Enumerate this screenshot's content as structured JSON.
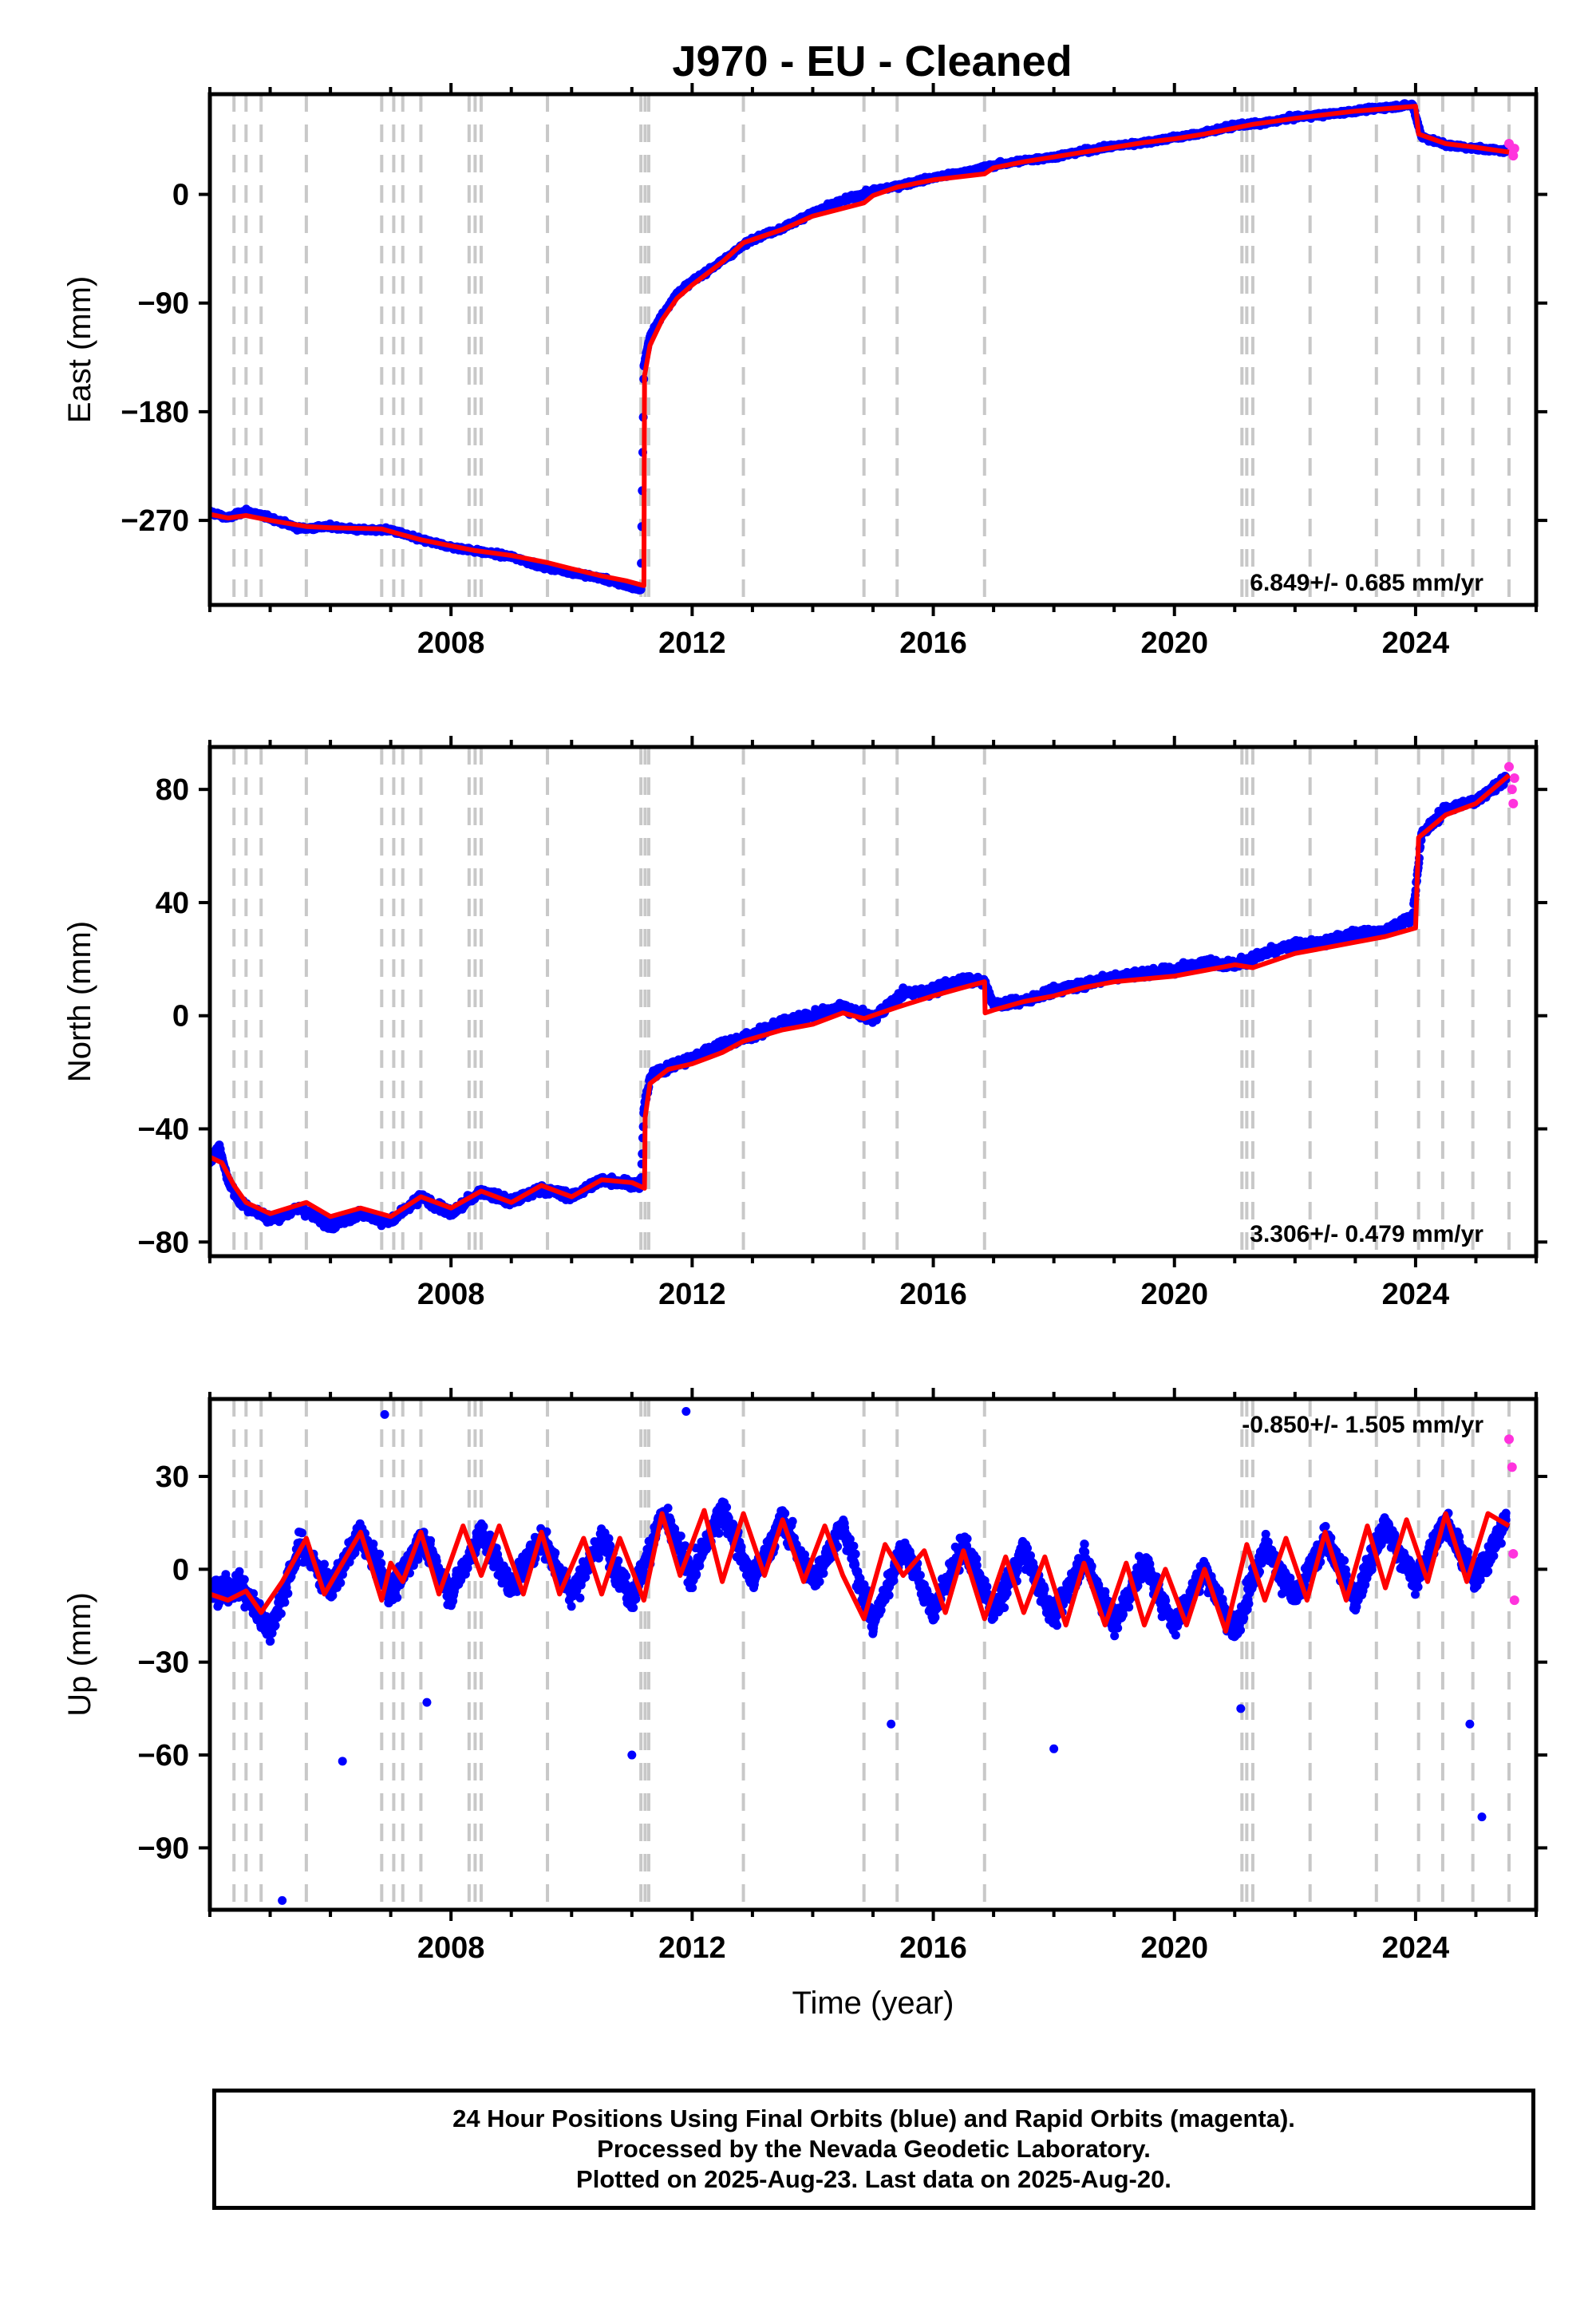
{
  "title": "J970  - EU - Cleaned",
  "footer": {
    "line1": "24 Hour Positions Using Final Orbits (blue) and Rapid Orbits (magenta).",
    "line2": "Processed by the Nevada Geodetic Laboratory.",
    "line3": "Plotted on 2025-Aug-23. Last data on 2025-Aug-20."
  },
  "colors": {
    "final_orbits": "#0000ff",
    "rapid_orbits": "#ff33dd",
    "model": "#ff0000",
    "event_lines": "#c8c8c8"
  },
  "chart_data": [
    {
      "type": "scatter",
      "panel": "east",
      "ylabel": "East (mm)",
      "xlabel": "",
      "rate": "6.849+/- 0.685 mm/yr",
      "rate_position": "bottom-right",
      "xlim": [
        2004.0,
        2026.0
      ],
      "ylim": [
        -340,
        83
      ],
      "xticks": [
        2008,
        2012,
        2016,
        2020,
        2024
      ],
      "yticks": [
        0,
        -90,
        -180,
        -270
      ],
      "event_lines": [
        2004.4,
        2004.6,
        2004.85,
        2005.6,
        2006.85,
        2007.05,
        2007.2,
        2007.5,
        2008.3,
        2008.4,
        2008.5,
        2009.6,
        2011.15,
        2011.22,
        2011.28,
        2012.85,
        2014.85,
        2015.4,
        2016.85,
        2021.12,
        2021.2,
        2021.3,
        2022.25,
        2023.35,
        2024.05,
        2024.45,
        2024.95,
        2025.55
      ],
      "series": [
        {
          "name": "Final Orbits",
          "style": "dots",
          "color": "#0000ff",
          "x": [
            2004.0,
            2004.3,
            2004.6,
            2005.0,
            2005.5,
            2006.0,
            2006.5,
            2007.0,
            2007.5,
            2008.0,
            2008.5,
            2009.0,
            2009.5,
            2010.0,
            2010.5,
            2010.9,
            2011.15,
            2011.2,
            2011.3,
            2011.5,
            2011.75,
            2012.0,
            2012.5,
            2013.0,
            2013.5,
            2014.0,
            2014.5,
            2015.0,
            2015.5,
            2016.0,
            2016.5,
            2017.0,
            2017.5,
            2018.0,
            2018.5,
            2019.0,
            2019.5,
            2020.0,
            2020.5,
            2021.0,
            2021.5,
            2022.0,
            2022.5,
            2023.0,
            2023.5,
            2023.95,
            2024.1,
            2024.5,
            2025.0,
            2025.5
          ],
          "y": [
            -263,
            -268,
            -262,
            -268,
            -277,
            -275,
            -278,
            -278,
            -286,
            -292,
            -296,
            -300,
            -308,
            -313,
            -318,
            -324,
            -327,
            -142,
            -118,
            -100,
            -82,
            -72,
            -55,
            -37,
            -28,
            -15,
            -5,
            3,
            8,
            14,
            18,
            24,
            28,
            31,
            36,
            40,
            43,
            47,
            51,
            57,
            59,
            64,
            66,
            69,
            72,
            74,
            48,
            41,
            38,
            36
          ]
        },
        {
          "name": "Rapid Orbits",
          "style": "dots",
          "color": "#ff33dd",
          "x": [
            2025.55,
            2025.6,
            2025.62,
            2025.64
          ],
          "y": [
            42,
            36,
            32,
            38
          ]
        },
        {
          "name": "Model",
          "style": "line",
          "color": "#ff0000",
          "x": [
            2004.0,
            2004.3,
            2004.6,
            2005.0,
            2005.6,
            2006.0,
            2006.85,
            2007.2,
            2007.5,
            2008.0,
            2008.4,
            2009.0,
            2009.6,
            2010.0,
            2010.5,
            2010.9,
            2011.2,
            2011.21,
            2011.3,
            2011.5,
            2011.75,
            2012.0,
            2012.5,
            2012.85,
            2013.5,
            2014.0,
            2014.85,
            2015.0,
            2015.4,
            2016.0,
            2016.85,
            2017.0,
            2017.5,
            2018.0,
            2018.5,
            2019.0,
            2019.5,
            2020.0,
            2020.5,
            2021.0,
            2021.3,
            2022.0,
            2022.5,
            2023.0,
            2023.5,
            2024.0,
            2024.05,
            2024.5,
            2025.0,
            2025.55
          ],
          "y": [
            -265,
            -268,
            -266,
            -270,
            -275,
            -276,
            -277,
            -282,
            -286,
            -291,
            -295,
            -299,
            -305,
            -310,
            -316,
            -320,
            -324,
            -150,
            -125,
            -104,
            -86,
            -75,
            -56,
            -40,
            -29,
            -18,
            -7,
            -1,
            6,
            12,
            17,
            22,
            27,
            31,
            35,
            39,
            43,
            46,
            50,
            55,
            58,
            63,
            66,
            69,
            71,
            73,
            50,
            42,
            39,
            35
          ]
        }
      ]
    },
    {
      "type": "scatter",
      "panel": "north",
      "ylabel": "North (mm)",
      "xlabel": "",
      "rate": "3.306+/- 0.479 mm/yr",
      "rate_position": "bottom-right",
      "xlim": [
        2004.0,
        2026.0
      ],
      "ylim": [
        -85,
        95
      ],
      "xticks": [
        2008,
        2012,
        2016,
        2020,
        2024
      ],
      "yticks": [
        80,
        40,
        0,
        -40,
        -80
      ],
      "event_lines": [
        2004.4,
        2004.6,
        2004.85,
        2005.6,
        2006.85,
        2007.05,
        2007.2,
        2007.5,
        2008.3,
        2008.4,
        2008.5,
        2009.6,
        2011.15,
        2011.22,
        2011.28,
        2012.85,
        2014.85,
        2015.4,
        2016.85,
        2021.12,
        2021.2,
        2021.3,
        2022.25,
        2023.35,
        2024.05,
        2024.45,
        2024.95,
        2025.55
      ],
      "series": [
        {
          "name": "Final Orbits",
          "style": "dots",
          "color": "#0000ff",
          "x": [
            2004.0,
            2004.15,
            2004.3,
            2004.5,
            2005.0,
            2005.5,
            2006.0,
            2006.5,
            2007.0,
            2007.5,
            2008.0,
            2008.5,
            2009.0,
            2009.5,
            2010.0,
            2010.5,
            2010.9,
            2011.15,
            2011.2,
            2011.3,
            2011.6,
            2012.0,
            2012.5,
            2013.0,
            2013.5,
            2014.0,
            2014.5,
            2015.0,
            2015.5,
            2016.0,
            2016.5,
            2016.85,
            2017.0,
            2017.5,
            2018.0,
            2018.5,
            2019.0,
            2019.5,
            2020.0,
            2020.5,
            2021.0,
            2021.5,
            2022.0,
            2022.5,
            2023.0,
            2023.5,
            2023.95,
            2024.1,
            2024.5,
            2025.0,
            2025.5
          ],
          "y": [
            -52,
            -46,
            -58,
            -66,
            -72,
            -68,
            -74,
            -70,
            -73,
            -64,
            -70,
            -62,
            -66,
            -61,
            -64,
            -58,
            -59,
            -60,
            -33,
            -22,
            -18,
            -15,
            -10,
            -7,
            -2,
            0,
            3,
            -1,
            8,
            9,
            13,
            12,
            4,
            5,
            9,
            11,
            14,
            15,
            16,
            19,
            18,
            22,
            25,
            26,
            29,
            30,
            35,
            64,
            73,
            76,
            84
          ]
        },
        {
          "name": "Rapid Orbits",
          "style": "dots",
          "color": "#ff33dd",
          "x": [
            2025.55,
            2025.6,
            2025.62,
            2025.64
          ],
          "y": [
            88,
            80,
            75,
            84
          ]
        },
        {
          "name": "Model",
          "style": "line",
          "color": "#ff0000",
          "x": [
            2004.0,
            2004.2,
            2004.4,
            2004.6,
            2005.0,
            2005.6,
            2006.0,
            2006.5,
            2007.0,
            2007.5,
            2008.0,
            2008.5,
            2009.0,
            2009.5,
            2010.0,
            2010.5,
            2011.0,
            2011.21,
            2011.22,
            2011.3,
            2011.6,
            2012.0,
            2012.5,
            2012.85,
            2013.5,
            2014.0,
            2014.5,
            2014.85,
            2015.4,
            2016.0,
            2016.5,
            2016.85,
            2016.86,
            2017.0,
            2017.5,
            2018.0,
            2018.5,
            2019.0,
            2019.5,
            2020.0,
            2020.5,
            2021.0,
            2021.3,
            2022.0,
            2022.5,
            2023.0,
            2023.5,
            2024.0,
            2024.05,
            2024.5,
            2025.0,
            2025.55
          ],
          "y": [
            -50,
            -52,
            -60,
            -66,
            -70,
            -66,
            -71,
            -68,
            -71,
            -64,
            -68,
            -62,
            -66,
            -60,
            -64,
            -58,
            -59,
            -61,
            -36,
            -24,
            -19,
            -17,
            -13,
            -9,
            -5,
            -3,
            1,
            -1,
            3,
            7,
            10,
            12,
            1,
            2,
            5,
            7,
            10,
            12,
            13,
            14,
            16,
            18,
            17,
            22,
            24,
            26,
            28,
            31,
            63,
            71,
            75,
            85
          ]
        }
      ]
    },
    {
      "type": "scatter",
      "panel": "up",
      "ylabel": "Up (mm)",
      "xlabel": "Time (year)",
      "rate": "-0.850+/- 1.505 mm/yr",
      "rate_position": "top-right",
      "xlim": [
        2004.0,
        2026.0
      ],
      "ylim": [
        -110,
        55
      ],
      "xticks": [
        2008,
        2012,
        2016,
        2020,
        2024
      ],
      "yticks": [
        30,
        0,
        -30,
        -60,
        -90
      ],
      "event_lines": [
        2004.4,
        2004.6,
        2004.85,
        2005.6,
        2006.85,
        2007.05,
        2007.2,
        2007.5,
        2008.3,
        2008.4,
        2008.5,
        2009.6,
        2011.15,
        2011.22,
        2011.28,
        2012.85,
        2014.85,
        2015.4,
        2016.85,
        2021.12,
        2021.2,
        2021.3,
        2022.25,
        2023.35,
        2024.05,
        2024.45,
        2024.95,
        2025.55
      ],
      "series": [
        {
          "name": "Final Orbits",
          "style": "dots",
          "color": "#0000ff",
          "x": [
            2004.0,
            2004.5,
            2005.0,
            2005.5,
            2006.0,
            2006.5,
            2007.0,
            2007.5,
            2008.0,
            2008.5,
            2009.0,
            2009.5,
            2010.0,
            2010.5,
            2011.0,
            2011.5,
            2012.0,
            2012.5,
            2013.0,
            2013.5,
            2014.0,
            2014.5,
            2015.0,
            2015.5,
            2016.0,
            2016.5,
            2017.0,
            2017.5,
            2018.0,
            2018.5,
            2019.0,
            2019.5,
            2020.0,
            2020.5,
            2021.0,
            2021.5,
            2022.0,
            2022.5,
            2023.0,
            2023.5,
            2024.0,
            2024.5,
            2025.0,
            2025.5
          ],
          "y": [
            -8,
            -5,
            -20,
            8,
            -6,
            12,
            -8,
            10,
            -8,
            12,
            -6,
            10,
            -8,
            10,
            -10,
            18,
            -2,
            20,
            -4,
            16,
            -4,
            14,
            -18,
            8,
            -14,
            8,
            -14,
            6,
            -16,
            4,
            -18,
            2,
            -18,
            0,
            -20,
            8,
            -10,
            10,
            -10,
            14,
            -4,
            16,
            -4,
            16
          ]
        },
        {
          "name": "Rapid Orbits",
          "style": "dots",
          "color": "#ff33dd",
          "x": [
            2025.55,
            2025.6,
            2025.62,
            2025.64
          ],
          "y": [
            42,
            33,
            5,
            -10
          ]
        },
        {
          "name": "Model",
          "style": "line",
          "color": "#ff0000",
          "x": [
            2004.0,
            2004.3,
            2004.6,
            2004.85,
            2005.2,
            2005.6,
            2005.9,
            2006.2,
            2006.5,
            2006.85,
            2007.0,
            2007.2,
            2007.5,
            2007.8,
            2008.2,
            2008.5,
            2008.8,
            2009.2,
            2009.5,
            2009.8,
            2010.2,
            2010.5,
            2010.8,
            2011.2,
            2011.5,
            2011.8,
            2012.2,
            2012.5,
            2012.85,
            2013.2,
            2013.5,
            2013.85,
            2014.2,
            2014.5,
            2014.85,
            2015.2,
            2015.5,
            2015.85,
            2016.2,
            2016.5,
            2016.85,
            2017.2,
            2017.5,
            2017.85,
            2018.2,
            2018.5,
            2018.85,
            2019.2,
            2019.5,
            2019.85,
            2020.2,
            2020.5,
            2020.85,
            2021.2,
            2021.5,
            2021.85,
            2022.2,
            2022.5,
            2022.85,
            2023.2,
            2023.5,
            2023.85,
            2024.2,
            2024.5,
            2024.85,
            2025.2,
            2025.55
          ],
          "y": [
            -8,
            -10,
            -7,
            -14,
            -4,
            10,
            -8,
            2,
            12,
            -10,
            2,
            -4,
            12,
            -8,
            14,
            -2,
            14,
            -8,
            12,
            -8,
            10,
            -8,
            10,
            -10,
            18,
            -2,
            19,
            -4,
            18,
            -2,
            16,
            -4,
            14,
            -2,
            -16,
            8,
            -2,
            6,
            -14,
            6,
            -16,
            4,
            -14,
            4,
            -18,
            2,
            -18,
            2,
            -18,
            0,
            -18,
            0,
            -20,
            8,
            -10,
            10,
            -10,
            12,
            -10,
            14,
            -6,
            16,
            -4,
            18,
            -4,
            18,
            14
          ]
        }
      ]
    }
  ]
}
